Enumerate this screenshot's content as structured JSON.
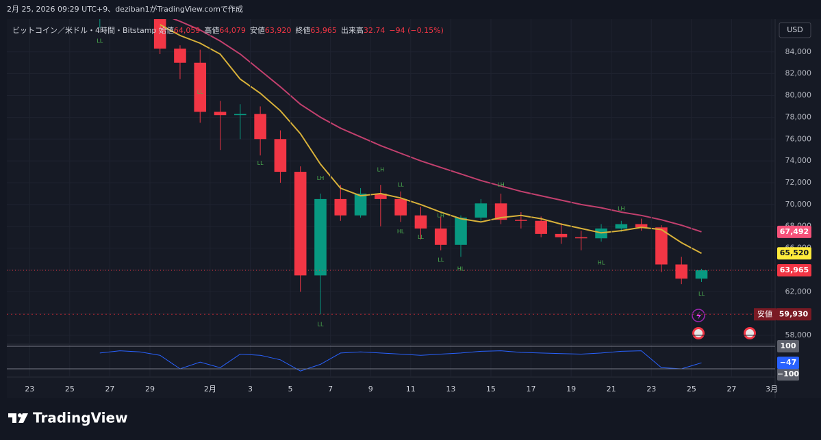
{
  "header": {
    "text": "2月 25, 2026 09:29 UTC+9、deziban1がTradingView.comで作成"
  },
  "footer": {
    "logo_text": "TradingView"
  },
  "currency_button": "USD",
  "chart_data": [
    {
      "type": "candlestick",
      "title": "ビットコイン／米ドル・4時間・Bitstamp",
      "info": [
        {
          "label": "始値",
          "value": "64,059"
        },
        {
          "label": "高値",
          "value": "64,079"
        },
        {
          "label": "安値",
          "value": "63,920"
        },
        {
          "label": "終値",
          "value": "63,965"
        },
        {
          "label": "出来高",
          "value": "32.74"
        },
        {
          "value": "−94 (−0.15%)"
        }
      ],
      "x": [
        "1/26",
        "1/27",
        "1/28",
        "1/29",
        "1/30",
        "1/31",
        "2/1",
        "2/2",
        "2/3",
        "2/4",
        "2/5",
        "2/6",
        "2/7",
        "2/8",
        "2/9",
        "2/10",
        "2/11",
        "2/12",
        "2/13",
        "2/14",
        "2/15",
        "2/16",
        "2/17",
        "2/18",
        "2/19",
        "2/20",
        "2/21",
        "2/22",
        "2/23",
        "2/24",
        "2/25"
      ],
      "open": [
        87000,
        87500,
        88500,
        87500,
        84300,
        83000,
        78500,
        78200,
        78300,
        76000,
        73000,
        63500,
        70500,
        69000,
        71000,
        70500,
        69000,
        67800,
        66300,
        68800,
        70100,
        68600,
        68500,
        67300,
        67000,
        66900,
        67800,
        68200,
        67900,
        64500,
        63200
      ],
      "high": [
        88000,
        89000,
        90000,
        88000,
        84600,
        84200,
        79500,
        79200,
        79000,
        76800,
        73500,
        71000,
        71800,
        71500,
        71800,
        71200,
        69800,
        68900,
        69000,
        70500,
        71000,
        69300,
        68900,
        68300,
        67600,
        68200,
        68500,
        68700,
        68100,
        65200,
        64100
      ],
      "low": [
        86200,
        87000,
        87200,
        83800,
        81500,
        77500,
        75000,
        76000,
        74500,
        72000,
        62000,
        59930,
        68500,
        68800,
        68000,
        68400,
        66800,
        65800,
        65200,
        68500,
        68200,
        67800,
        67000,
        66400,
        65800,
        66600,
        67500,
        67600,
        63800,
        62700,
        62900
      ],
      "close": [
        87500,
        88500,
        87500,
        84300,
        83000,
        78500,
        78200,
        78300,
        76000,
        73000,
        63500,
        70500,
        69000,
        71000,
        70500,
        69000,
        67800,
        66300,
        68800,
        70100,
        68600,
        68500,
        67300,
        67000,
        66900,
        67800,
        68200,
        67900,
        64500,
        63200,
        63965
      ],
      "close_value_labels": [
        null,
        null,
        null,
        null,
        null,
        null,
        null,
        null,
        null,
        null,
        null,
        null,
        null,
        null,
        null,
        null,
        null,
        null,
        null,
        null,
        null,
        null,
        null,
        null,
        null,
        null,
        null,
        null,
        null,
        null,
        "63,965"
      ],
      "up_color": "#089981",
      "down_color": "#f23645",
      "series": [
        {
          "color": "#d8b13a",
          "values": [
            null,
            null,
            null,
            86500,
            85500,
            84800,
            83800,
            81500,
            80200,
            78600,
            76500,
            73700,
            71500,
            70800,
            71000,
            70600,
            70000,
            69300,
            68700,
            68400,
            68800,
            69000,
            68700,
            68200,
            67800,
            67400,
            67600,
            67900,
            67700,
            66500,
            65520
          ],
          "value_labels": [
            null,
            null,
            null,
            null,
            null,
            null,
            null,
            null,
            null,
            null,
            null,
            null,
            null,
            null,
            null,
            null,
            null,
            null,
            null,
            null,
            null,
            null,
            null,
            null,
            null,
            null,
            null,
            null,
            null,
            null,
            "65,520"
          ],
          "label_color": "#ffeb3b"
        },
        {
          "color": "#c2406e",
          "values": [
            null,
            null,
            null,
            87500,
            86800,
            86000,
            85000,
            83800,
            82300,
            80800,
            79200,
            78000,
            77000,
            76200,
            75400,
            74700,
            74000,
            73400,
            72800,
            72200,
            71700,
            71200,
            70800,
            70400,
            70000,
            69700,
            69300,
            69000,
            68600,
            68100,
            67492
          ],
          "value_labels": [
            null,
            null,
            null,
            null,
            null,
            null,
            null,
            null,
            null,
            null,
            null,
            null,
            null,
            null,
            null,
            null,
            null,
            null,
            null,
            null,
            null,
            null,
            null,
            null,
            null,
            null,
            null,
            null,
            null,
            null,
            "67,492"
          ],
          "label_color": "#f7527a"
        }
      ],
      "low_marker": {
        "label": "安値",
        "value": 59930,
        "value_label": "59,930"
      },
      "annotations": [
        {
          "text": "LL",
          "x": "1/26",
          "y": 85000
        },
        {
          "text": "LL",
          "x": "1/31",
          "y": 80300
        },
        {
          "text": "LL",
          "x": "2/3",
          "y": 73800
        },
        {
          "text": "LH",
          "x": "2/6",
          "y": 72400
        },
        {
          "text": "LL",
          "x": "2/6",
          "y": 59000
        },
        {
          "text": "LH",
          "x": "2/9",
          "y": 73200
        },
        {
          "text": "HL",
          "x": "2/10",
          "y": 67500
        },
        {
          "text": "LL",
          "x": "2/10",
          "y": 71800
        },
        {
          "text": "LL",
          "x": "2/11",
          "y": 67000
        },
        {
          "text": "LL",
          "x": "2/12",
          "y": 64900
        },
        {
          "text": "LH",
          "x": "2/12",
          "y": 69000
        },
        {
          "text": "HL",
          "x": "2/13",
          "y": 64100
        },
        {
          "text": "LH",
          "x": "2/15",
          "y": 71800
        },
        {
          "text": "HL",
          "x": "2/20",
          "y": 64650
        },
        {
          "text": "LH",
          "x": "2/21",
          "y": 69600
        },
        {
          "text": "LL",
          "x": "2/25",
          "y": 61800
        }
      ],
      "xlim": [
        "1/22",
        "3/1"
      ],
      "xticks": [
        {
          "value": "1/23",
          "label": "23"
        },
        {
          "value": "1/25",
          "label": "25"
        },
        {
          "value": "1/27",
          "label": "27"
        },
        {
          "value": "1/29",
          "label": "29"
        },
        {
          "value": "2/1",
          "label": "2月"
        },
        {
          "value": "2/3",
          "label": "3"
        },
        {
          "value": "2/5",
          "label": "5"
        },
        {
          "value": "2/7",
          "label": "7"
        },
        {
          "value": "2/9",
          "label": "9"
        },
        {
          "value": "2/11",
          "label": "11"
        },
        {
          "value": "2/13",
          "label": "13"
        },
        {
          "value": "2/15",
          "label": "15"
        },
        {
          "value": "2/17",
          "label": "17"
        },
        {
          "value": "2/19",
          "label": "19"
        },
        {
          "value": "2/21",
          "label": "21"
        },
        {
          "value": "2/23",
          "label": "23"
        },
        {
          "value": "2/25",
          "label": "25"
        },
        {
          "value": "2/27",
          "label": "27"
        },
        {
          "value": "3/1",
          "label": "3月"
        }
      ],
      "ylim": [
        57250,
        87000
      ],
      "yticks": [
        {
          "value": 58000,
          "label": "58,000"
        },
        {
          "value": 60000,
          "label": "60,000"
        },
        {
          "value": 62000,
          "label": "62,000"
        },
        {
          "value": 64000,
          "label": "64,000"
        },
        {
          "value": 66000,
          "label": "66,000"
        },
        {
          "value": 68000,
          "label": "68,000"
        },
        {
          "value": 70000,
          "label": "70,000"
        },
        {
          "value": 72000,
          "label": "72,000"
        },
        {
          "value": 74000,
          "label": "74,000"
        },
        {
          "value": 76000,
          "label": "76,000"
        },
        {
          "value": 78000,
          "label": "78,000"
        },
        {
          "value": 80000,
          "label": "80,000"
        },
        {
          "value": 82000,
          "label": "82,000"
        },
        {
          "value": 84000,
          "label": "84,000"
        }
      ],
      "grid": true
    },
    {
      "type": "line",
      "x": [
        "1/26",
        "1/27",
        "1/28",
        "1/29",
        "1/30",
        "1/31",
        "2/1",
        "2/2",
        "2/3",
        "2/4",
        "2/5",
        "2/6",
        "2/7",
        "2/8",
        "2/9",
        "2/10",
        "2/11",
        "2/12",
        "2/13",
        "2/14",
        "2/15",
        "2/16",
        "2/17",
        "2/18",
        "2/19",
        "2/20",
        "2/21",
        "2/22",
        "2/23",
        "2/24",
        "2/25"
      ],
      "series": [
        {
          "color": "#2962ff",
          "values": [
            40,
            60,
            50,
            20,
            -100,
            -40,
            -90,
            30,
            20,
            -20,
            -120,
            -60,
            40,
            50,
            40,
            30,
            20,
            30,
            40,
            55,
            60,
            45,
            40,
            35,
            30,
            40,
            55,
            60,
            -90,
            -100,
            -47
          ],
          "value_labels": [
            null,
            null,
            null,
            null,
            null,
            null,
            null,
            null,
            null,
            null,
            null,
            null,
            null,
            null,
            null,
            null,
            null,
            null,
            null,
            null,
            null,
            null,
            null,
            null,
            null,
            null,
            null,
            null,
            null,
            null,
            "−47"
          ]
        }
      ],
      "xlim": [
        "1/22",
        "3/1"
      ],
      "ylim": [
        -167,
        118
      ],
      "yticks": [
        100,
        {
          "value": -100,
          "label": "−100"
        }
      ]
    }
  ]
}
